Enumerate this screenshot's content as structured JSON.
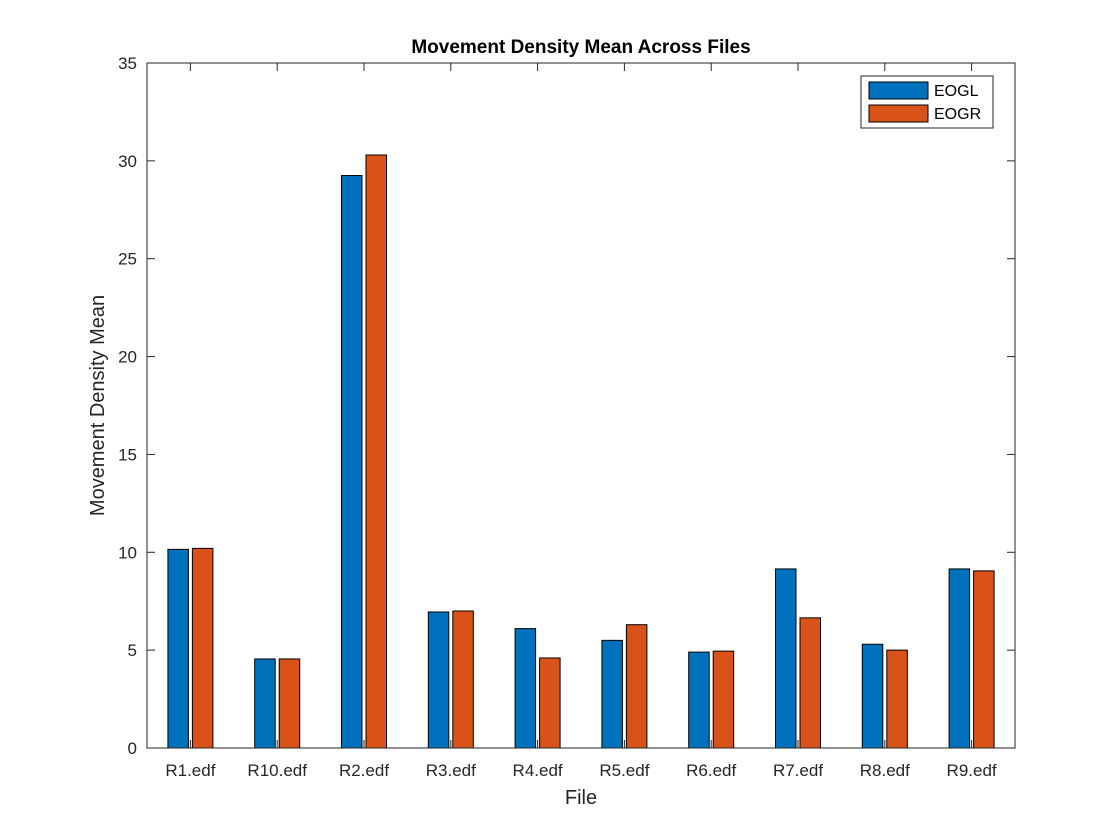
{
  "chart_data": {
    "type": "bar",
    "title": "Movement Density Mean Across Files",
    "xlabel": "File",
    "ylabel": "Movement Density Mean",
    "categories": [
      "R1.edf",
      "R10.edf",
      "R2.edf",
      "R3.edf",
      "R4.edf",
      "R5.edf",
      "R6.edf",
      "R7.edf",
      "R8.edf",
      "R9.edf"
    ],
    "series": [
      {
        "name": "EOGL",
        "color": "#0072BD",
        "values": [
          10.15,
          4.55,
          29.25,
          6.95,
          6.1,
          5.5,
          4.9,
          9.15,
          5.3,
          9.15
        ]
      },
      {
        "name": "EOGR",
        "color": "#D95319",
        "values": [
          10.2,
          4.55,
          30.3,
          7.0,
          4.6,
          6.3,
          4.95,
          6.65,
          5.0,
          9.05
        ]
      }
    ],
    "ylim": [
      0,
      35
    ],
    "yticks": [
      0,
      5,
      10,
      15,
      20,
      25,
      30,
      35
    ],
    "grid": false,
    "legend_position": "top-right"
  }
}
